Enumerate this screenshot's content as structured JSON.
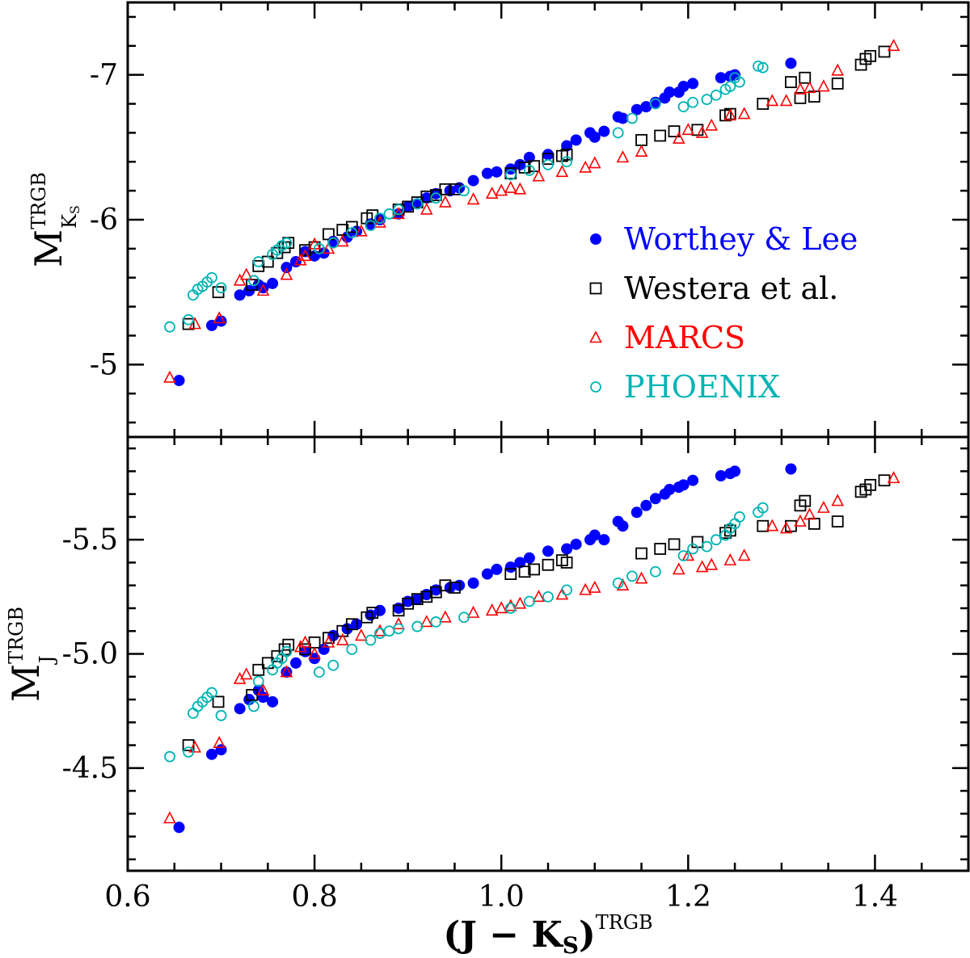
{
  "chart_data": [
    {
      "type": "scatter",
      "panel": "top",
      "ylabel": {
        "base": "M",
        "sup": "TRGB",
        "sub": "K",
        "subsub": "S"
      },
      "xlim": [
        0.6,
        1.5
      ],
      "ylim": [
        -4.5,
        -7.5
      ],
      "y_inverted": true,
      "ytick_labels": [
        "-5",
        "-6",
        "-7"
      ],
      "xtick_labels": [],
      "legend": {
        "placement": "right-middle",
        "entries": [
          {
            "label": "Worthey & Lee",
            "marker": "filled-circle",
            "color": "#0000ff"
          },
          {
            "label": "Westera et al.",
            "marker": "open-square",
            "color": "#000000"
          },
          {
            "label": "MARCS",
            "marker": "open-triangle",
            "color": "#ff0000"
          },
          {
            "label": "PHOENIX",
            "marker": "open-circle",
            "color": "#00b4b4"
          }
        ]
      },
      "series": [
        {
          "name": "Worthey & Lee",
          "marker": "filled-circle",
          "color": "#0000ff",
          "x": [
            0.655,
            0.69,
            0.7,
            0.72,
            0.73,
            0.74,
            0.745,
            0.755,
            0.77,
            0.78,
            0.79,
            0.8,
            0.81,
            0.82,
            0.835,
            0.845,
            0.86,
            0.87,
            0.89,
            0.9,
            0.91,
            0.92,
            0.93,
            0.945,
            0.955,
            0.97,
            0.985,
            0.995,
            1.01,
            1.02,
            1.03,
            1.05,
            1.07,
            1.08,
            1.095,
            1.1,
            1.11,
            1.125,
            1.13,
            1.145,
            1.155,
            1.165,
            1.175,
            1.18,
            1.19,
            1.195,
            1.205,
            1.235,
            1.245,
            1.25,
            1.31
          ],
          "y": [
            -4.89,
            -5.27,
            -5.3,
            -5.48,
            -5.51,
            -5.55,
            -5.53,
            -5.56,
            -5.67,
            -5.71,
            -5.78,
            -5.75,
            -5.77,
            -5.85,
            -5.88,
            -5.92,
            -5.97,
            -6.0,
            -6.04,
            -6.09,
            -6.11,
            -6.15,
            -6.18,
            -6.2,
            -6.22,
            -6.27,
            -6.32,
            -6.33,
            -6.35,
            -6.38,
            -6.43,
            -6.45,
            -6.51,
            -6.55,
            -6.6,
            -6.57,
            -6.61,
            -6.71,
            -6.7,
            -6.76,
            -6.78,
            -6.81,
            -6.84,
            -6.88,
            -6.88,
            -6.92,
            -6.94,
            -6.98,
            -6.99,
            -7.0,
            -7.08
          ]
        },
        {
          "name": "Westera et al.",
          "marker": "open-square",
          "color": "#000000",
          "x": [
            0.665,
            0.697,
            0.733,
            0.74,
            0.75,
            0.76,
            0.768,
            0.772,
            0.79,
            0.8,
            0.815,
            0.83,
            0.84,
            0.856,
            0.862,
            0.89,
            0.9,
            0.91,
            0.92,
            0.93,
            0.94,
            0.95,
            1.01,
            1.025,
            1.035,
            1.05,
            1.065,
            1.07,
            1.15,
            1.17,
            1.185,
            1.21,
            1.24,
            1.245,
            1.28,
            1.31,
            1.32,
            1.325,
            1.335,
            1.36,
            1.385,
            1.39,
            1.395,
            1.41
          ],
          "y": [
            -5.28,
            -5.5,
            -5.55,
            -5.68,
            -5.71,
            -5.77,
            -5.81,
            -5.84,
            -5.79,
            -5.81,
            -5.9,
            -5.93,
            -5.95,
            -6.01,
            -6.03,
            -6.07,
            -6.09,
            -6.12,
            -6.16,
            -6.17,
            -6.21,
            -6.21,
            -6.32,
            -6.36,
            -6.37,
            -6.42,
            -6.44,
            -6.45,
            -6.55,
            -6.58,
            -6.61,
            -6.62,
            -6.72,
            -6.73,
            -6.8,
            -6.95,
            -6.84,
            -6.98,
            -6.85,
            -6.94,
            -7.07,
            -7.11,
            -7.13,
            -7.16
          ]
        },
        {
          "name": "MARCS",
          "marker": "open-triangle",
          "color": "#ff0000",
          "x": [
            0.645,
            0.672,
            0.698,
            0.72,
            0.727,
            0.745,
            0.77,
            0.785,
            0.79,
            0.8,
            0.815,
            0.83,
            0.85,
            0.87,
            0.89,
            0.92,
            0.94,
            0.97,
            0.99,
            1.0,
            1.01,
            1.02,
            1.04,
            1.065,
            1.09,
            1.1,
            1.13,
            1.15,
            1.19,
            1.2,
            1.215,
            1.225,
            1.245,
            1.26,
            1.29,
            1.305,
            1.32,
            1.33,
            1.345,
            1.36,
            1.42
          ],
          "y": [
            -4.91,
            -5.28,
            -5.32,
            -5.58,
            -5.62,
            -5.51,
            -5.62,
            -5.72,
            -5.75,
            -5.83,
            -5.8,
            -5.85,
            -5.92,
            -5.98,
            -6.04,
            -6.07,
            -6.12,
            -6.14,
            -6.18,
            -6.2,
            -6.22,
            -6.21,
            -6.3,
            -6.33,
            -6.36,
            -6.39,
            -6.43,
            -6.47,
            -6.56,
            -6.62,
            -6.6,
            -6.65,
            -6.72,
            -6.73,
            -6.82,
            -6.82,
            -6.9,
            -6.91,
            -6.92,
            -7.03,
            -7.2
          ]
        },
        {
          "name": "PHOENIX",
          "marker": "open-circle",
          "color": "#00b4b4",
          "x": [
            0.645,
            0.665,
            0.67,
            0.675,
            0.68,
            0.685,
            0.69,
            0.7,
            0.735,
            0.74,
            0.755,
            0.76,
            0.765,
            0.77,
            0.805,
            0.82,
            0.84,
            0.86,
            0.87,
            0.88,
            0.89,
            0.91,
            0.93,
            0.96,
            1.01,
            1.03,
            1.05,
            1.07,
            1.125,
            1.14,
            1.165,
            1.195,
            1.205,
            1.22,
            1.23,
            1.24,
            1.245,
            1.25,
            1.255,
            1.275,
            1.28
          ],
          "y": [
            -5.26,
            -5.31,
            -5.48,
            -5.52,
            -5.54,
            -5.57,
            -5.6,
            -5.53,
            -5.58,
            -5.71,
            -5.76,
            -5.79,
            -5.82,
            -5.84,
            -5.8,
            -5.84,
            -5.91,
            -5.96,
            -6.01,
            -6.04,
            -6.07,
            -6.11,
            -6.15,
            -6.2,
            -6.31,
            -6.34,
            -6.38,
            -6.4,
            -6.6,
            -6.7,
            -6.8,
            -6.78,
            -6.81,
            -6.83,
            -6.86,
            -6.9,
            -6.92,
            -6.98,
            -6.95,
            -7.06,
            -7.05
          ]
        }
      ]
    },
    {
      "type": "scatter",
      "panel": "bottom",
      "ylabel": {
        "base": "M",
        "sup": "TRGB",
        "sub": "J"
      },
      "xlabel": "(J − K",
      "xlabel_sub": "S",
      "xlabel_tail": ")",
      "xlabel_sup": "TRGB",
      "xlim": [
        0.6,
        1.5
      ],
      "ylim": [
        -4.05,
        -5.95
      ],
      "y_inverted": true,
      "ytick_labels": [
        "-4.5",
        "-5.0",
        "-5.5"
      ],
      "xtick_labels": [
        "0.6",
        "0.8",
        "1.0",
        "1.2",
        "1.4"
      ],
      "series": [
        {
          "name": "Worthey & Lee",
          "marker": "filled-circle",
          "color": "#0000ff",
          "x": [
            0.655,
            0.69,
            0.7,
            0.72,
            0.73,
            0.74,
            0.745,
            0.755,
            0.77,
            0.78,
            0.79,
            0.8,
            0.81,
            0.82,
            0.835,
            0.845,
            0.86,
            0.87,
            0.89,
            0.9,
            0.91,
            0.92,
            0.93,
            0.945,
            0.955,
            0.97,
            0.985,
            0.995,
            1.01,
            1.02,
            1.03,
            1.05,
            1.07,
            1.08,
            1.095,
            1.1,
            1.11,
            1.125,
            1.13,
            1.145,
            1.155,
            1.165,
            1.175,
            1.18,
            1.19,
            1.195,
            1.205,
            1.235,
            1.245,
            1.25,
            1.31
          ],
          "y": [
            -4.24,
            -4.56,
            -4.58,
            -4.76,
            -4.8,
            -4.84,
            -4.81,
            -4.79,
            -4.92,
            -4.96,
            -5.01,
            -4.98,
            -5.02,
            -5.08,
            -5.11,
            -5.13,
            -5.17,
            -5.19,
            -5.2,
            -5.23,
            -5.24,
            -5.26,
            -5.28,
            -5.29,
            -5.3,
            -5.31,
            -5.35,
            -5.37,
            -5.38,
            -5.4,
            -5.42,
            -5.45,
            -5.46,
            -5.48,
            -5.5,
            -5.52,
            -5.5,
            -5.58,
            -5.56,
            -5.62,
            -5.65,
            -5.68,
            -5.7,
            -5.72,
            -5.73,
            -5.74,
            -5.76,
            -5.78,
            -5.79,
            -5.8,
            -5.81
          ]
        },
        {
          "name": "Westera et al.",
          "marker": "open-square",
          "color": "#000000",
          "x": [
            0.665,
            0.697,
            0.733,
            0.74,
            0.75,
            0.76,
            0.768,
            0.772,
            0.79,
            0.8,
            0.815,
            0.83,
            0.84,
            0.856,
            0.862,
            0.89,
            0.9,
            0.91,
            0.92,
            0.93,
            0.94,
            0.95,
            1.01,
            1.025,
            1.035,
            1.05,
            1.065,
            1.07,
            1.15,
            1.17,
            1.185,
            1.21,
            1.24,
            1.245,
            1.28,
            1.31,
            1.32,
            1.325,
            1.335,
            1.36,
            1.385,
            1.39,
            1.395,
            1.41
          ],
          "y": [
            -4.6,
            -4.79,
            -4.82,
            -4.93,
            -4.96,
            -4.99,
            -5.02,
            -5.04,
            -5.02,
            -5.05,
            -5.07,
            -5.1,
            -5.13,
            -5.16,
            -5.18,
            -5.19,
            -5.22,
            -5.24,
            -5.25,
            -5.27,
            -5.3,
            -5.29,
            -5.35,
            -5.36,
            -5.37,
            -5.39,
            -5.41,
            -5.4,
            -5.44,
            -5.46,
            -5.48,
            -5.49,
            -5.53,
            -5.54,
            -5.56,
            -5.56,
            -5.65,
            -5.67,
            -5.57,
            -5.58,
            -5.71,
            -5.72,
            -5.74,
            -5.76
          ]
        },
        {
          "name": "MARCS",
          "marker": "open-triangle",
          "color": "#ff0000",
          "x": [
            0.645,
            0.672,
            0.698,
            0.72,
            0.727,
            0.745,
            0.77,
            0.785,
            0.79,
            0.8,
            0.815,
            0.83,
            0.85,
            0.87,
            0.89,
            0.92,
            0.94,
            0.97,
            0.99,
            1.0,
            1.01,
            1.02,
            1.04,
            1.065,
            1.09,
            1.1,
            1.13,
            1.15,
            1.19,
            1.2,
            1.215,
            1.225,
            1.245,
            1.26,
            1.29,
            1.305,
            1.32,
            1.33,
            1.345,
            1.36,
            1.42
          ],
          "y": [
            -4.28,
            -4.59,
            -4.61,
            -4.89,
            -4.91,
            -4.84,
            -4.92,
            -5.03,
            -5.05,
            -5.0,
            -5.05,
            -5.06,
            -5.08,
            -5.1,
            -5.13,
            -5.14,
            -5.16,
            -5.18,
            -5.19,
            -5.2,
            -5.21,
            -5.22,
            -5.25,
            -5.26,
            -5.28,
            -5.29,
            -5.3,
            -5.33,
            -5.37,
            -5.43,
            -5.38,
            -5.39,
            -5.41,
            -5.43,
            -5.56,
            -5.55,
            -5.58,
            -5.61,
            -5.64,
            -5.67,
            -5.77
          ]
        },
        {
          "name": "PHOENIX",
          "marker": "open-circle",
          "color": "#00b4b4",
          "x": [
            0.645,
            0.665,
            0.67,
            0.675,
            0.68,
            0.685,
            0.69,
            0.7,
            0.735,
            0.74,
            0.755,
            0.76,
            0.765,
            0.77,
            0.805,
            0.82,
            0.84,
            0.86,
            0.87,
            0.88,
            0.89,
            0.91,
            0.93,
            0.96,
            1.01,
            1.03,
            1.05,
            1.07,
            1.125,
            1.14,
            1.165,
            1.195,
            1.205,
            1.22,
            1.23,
            1.24,
            1.245,
            1.25,
            1.255,
            1.275,
            1.28
          ],
          "y": [
            -4.55,
            -4.57,
            -4.74,
            -4.77,
            -4.79,
            -4.81,
            -4.83,
            -4.73,
            -4.77,
            -4.88,
            -4.93,
            -4.96,
            -4.98,
            -5.01,
            -4.92,
            -4.95,
            -5.02,
            -5.06,
            -5.09,
            -5.1,
            -5.11,
            -5.12,
            -5.14,
            -5.16,
            -5.2,
            -5.23,
            -5.25,
            -5.28,
            -5.31,
            -5.34,
            -5.36,
            -5.43,
            -5.46,
            -5.47,
            -5.5,
            -5.52,
            -5.55,
            -5.57,
            -5.6,
            -5.62,
            -5.64
          ]
        }
      ]
    }
  ]
}
